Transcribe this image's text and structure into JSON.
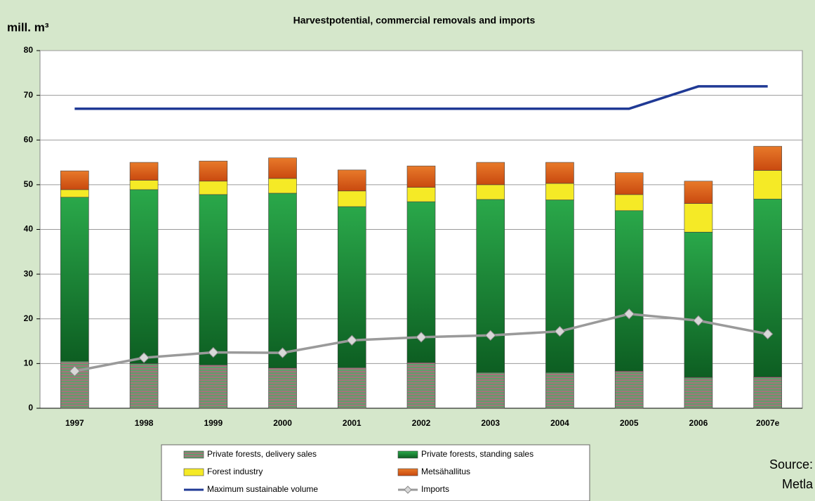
{
  "chart_data": {
    "type": "bar",
    "title": "Harvestpotential, commercial removals and imports",
    "y_label": "mill. m³",
    "categories": [
      "1997",
      "1998",
      "1999",
      "2000",
      "2001",
      "2002",
      "2003",
      "2004",
      "2005",
      "2006",
      "2007e"
    ],
    "series": [
      {
        "name": "Private forests, delivery sales",
        "type": "bar",
        "color": "#a6727c",
        "values": [
          10.5,
          10,
          9.7,
          9,
          9.1,
          10.2,
          8,
          8,
          8.3,
          6.9,
          7
        ]
      },
      {
        "name": "Private forests, standing sales",
        "type": "bar",
        "color": "#1c8a36",
        "values": [
          36.7,
          38.9,
          38.1,
          39.1,
          36,
          36,
          38.7,
          38.6,
          35.9,
          32.5,
          39.8
        ]
      },
      {
        "name": "Forest industry",
        "type": "bar",
        "color": "#f5ea26",
        "values": [
          1.7,
          2.1,
          3.0,
          3.3,
          3.5,
          3.2,
          3.3,
          3.7,
          3.6,
          6.4,
          6.4
        ]
      },
      {
        "name": "Metsähallitus",
        "type": "bar",
        "color": "#e0621c",
        "values": [
          4.2,
          4,
          4.5,
          4.6,
          4.7,
          4.8,
          5,
          4.7,
          4.9,
          5,
          5.4
        ]
      },
      {
        "name": "Maximum sustainable volume",
        "type": "line",
        "color": "#203a95",
        "values": [
          67,
          67,
          67,
          67,
          67,
          67,
          67,
          67,
          67,
          72,
          72
        ]
      },
      {
        "name": "Imports",
        "type": "line",
        "marker": "diamond",
        "color": "#9a9a9a",
        "values": [
          8.3,
          11.3,
          12.5,
          12.4,
          15.2,
          15.9,
          16.3,
          17.2,
          21.1,
          19.6,
          16.6
        ]
      }
    ],
    "stacked": true,
    "ylim": [
      0,
      80
    ],
    "yticks": [
      0,
      10,
      20,
      30,
      40,
      50,
      60,
      70,
      80
    ],
    "grid": true,
    "legend": "bottom",
    "source": [
      "Source:",
      "Metla"
    ]
  }
}
